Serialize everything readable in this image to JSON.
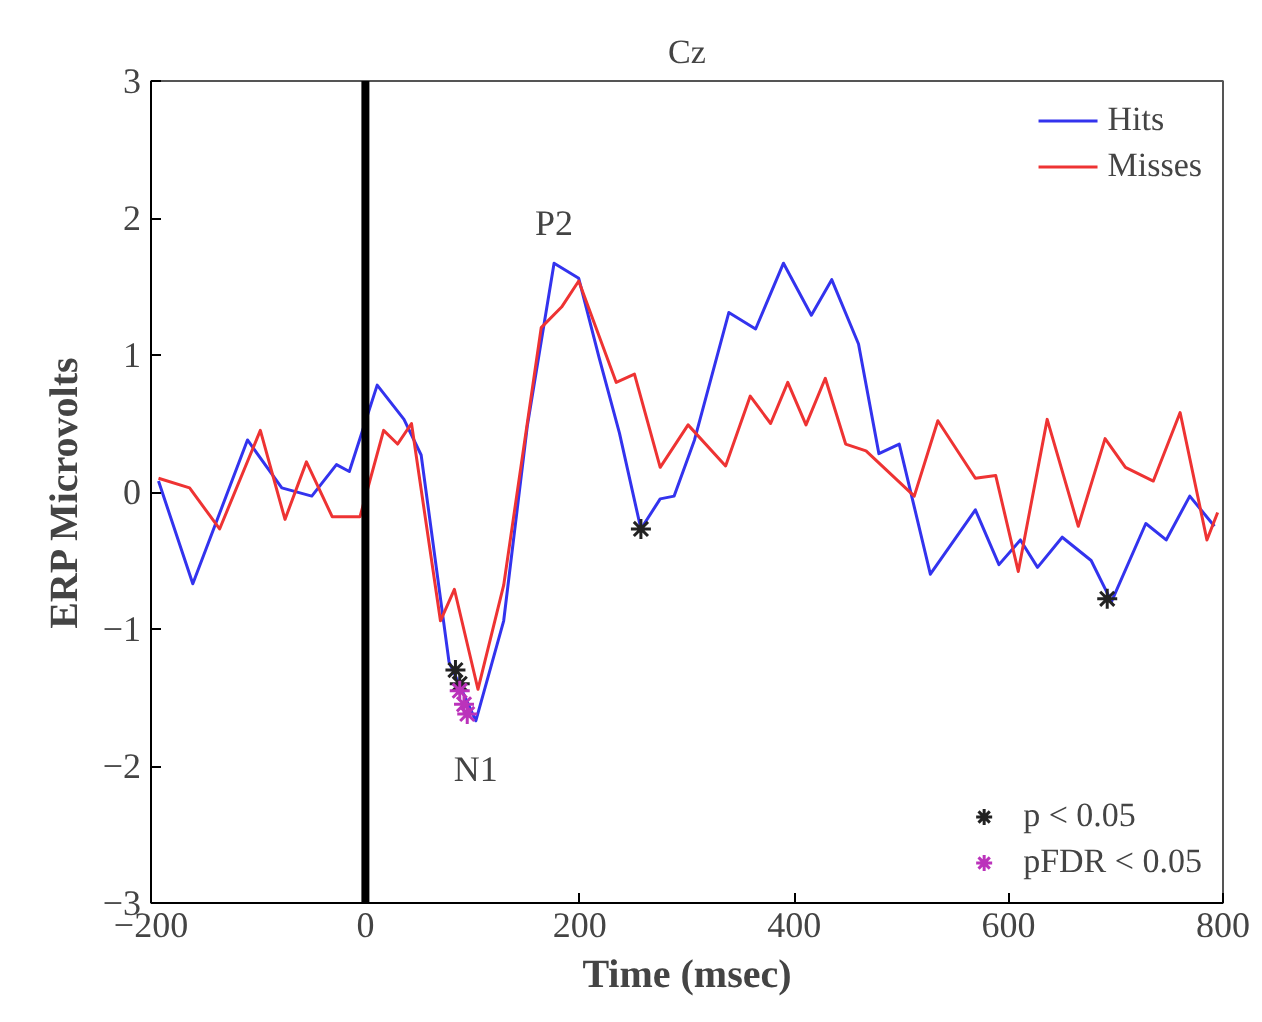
{
  "chart_data": {
    "type": "line",
    "title": "Cz",
    "xlabel": "Time (msec)",
    "ylabel": "ERP Microvolts",
    "xlim": [
      -200,
      800
    ],
    "ylim": [
      -3,
      3
    ],
    "xticks": [
      {
        "value": -200,
        "label": "−200"
      },
      0,
      200,
      400,
      600,
      800
    ],
    "yticks": [
      {
        "value": -3,
        "label": "−3"
      },
      {
        "value": -2,
        "label": "−2"
      },
      {
        "value": -1,
        "label": "−1"
      },
      0,
      1,
      2,
      3
    ],
    "grid": false,
    "legend": "right",
    "line_style": "solid",
    "series": [
      {
        "name": "Hits",
        "color": "#3333ee",
        "x": [
          -193,
          -161,
          -110,
          -78,
          -50,
          -27,
          -15,
          11,
          36,
          52,
          78,
          103,
          129,
          151,
          176,
          199,
          218,
          237,
          257,
          275,
          288,
          307,
          339,
          364,
          390,
          416,
          435,
          460,
          479,
          498,
          527,
          569,
          591,
          611,
          627,
          650,
          677,
          696,
          728,
          747,
          769,
          792
        ],
        "values": [
          0.08,
          -0.67,
          0.38,
          0.03,
          -0.03,
          0.2,
          0.15,
          0.78,
          0.53,
          0.27,
          -1.24,
          -1.67,
          -0.94,
          0.48,
          1.67,
          1.56,
          0.98,
          0.43,
          -0.27,
          -0.05,
          -0.03,
          0.38,
          1.31,
          1.19,
          1.67,
          1.29,
          1.55,
          1.08,
          0.28,
          0.35,
          -0.6,
          -0.13,
          -0.53,
          -0.35,
          -0.55,
          -0.33,
          -0.5,
          -0.8,
          -0.23,
          -0.35,
          -0.03,
          -0.25
        ]
      },
      {
        "name": "Misses",
        "color": "#ee3333",
        "x": [
          -193,
          -164,
          -136,
          -98,
          -75,
          -55,
          -31,
          -5,
          17,
          30,
          43,
          70,
          83,
          105,
          129,
          164,
          183,
          199,
          234,
          251,
          275,
          301,
          336,
          359,
          378,
          394,
          411,
          429,
          448,
          467,
          512,
          534,
          569,
          588,
          609,
          636,
          665,
          690,
          709,
          735,
          760,
          785,
          795
        ],
        "values": [
          0.1,
          0.03,
          -0.27,
          0.45,
          -0.2,
          0.22,
          -0.18,
          -0.18,
          0.45,
          0.35,
          0.5,
          -0.94,
          -0.71,
          -1.44,
          -0.68,
          1.2,
          1.35,
          1.54,
          0.8,
          0.86,
          0.18,
          0.49,
          0.19,
          0.7,
          0.5,
          0.8,
          0.49,
          0.83,
          0.35,
          0.3,
          -0.03,
          0.52,
          0.1,
          0.12,
          -0.58,
          0.53,
          -0.25,
          0.39,
          0.18,
          0.08,
          0.58,
          -0.35,
          -0.15
        ]
      },
      {
        "name": "p < 0.05",
        "type": "scatter",
        "marker": "cross",
        "color": "#222222",
        "x": [
          84,
          88,
          257,
          692
        ],
        "values": [
          -1.3,
          -1.4,
          -0.27,
          -0.78
        ]
      },
      {
        "name": "pFDR < 0.05",
        "type": "scatter",
        "marker": "cross",
        "color": "#bb33bb",
        "x": [
          88,
          92,
          95
        ],
        "values": [
          -1.45,
          -1.55,
          -1.62
        ]
      }
    ],
    "ref_lines": [
      {
        "axis": "x",
        "value": 0,
        "color": "#000000"
      }
    ],
    "annotations": [
      {
        "text": "P2",
        "x": 176,
        "y": 1.67
      },
      {
        "text": "N1",
        "x": 103,
        "y": -1.67
      }
    ]
  }
}
